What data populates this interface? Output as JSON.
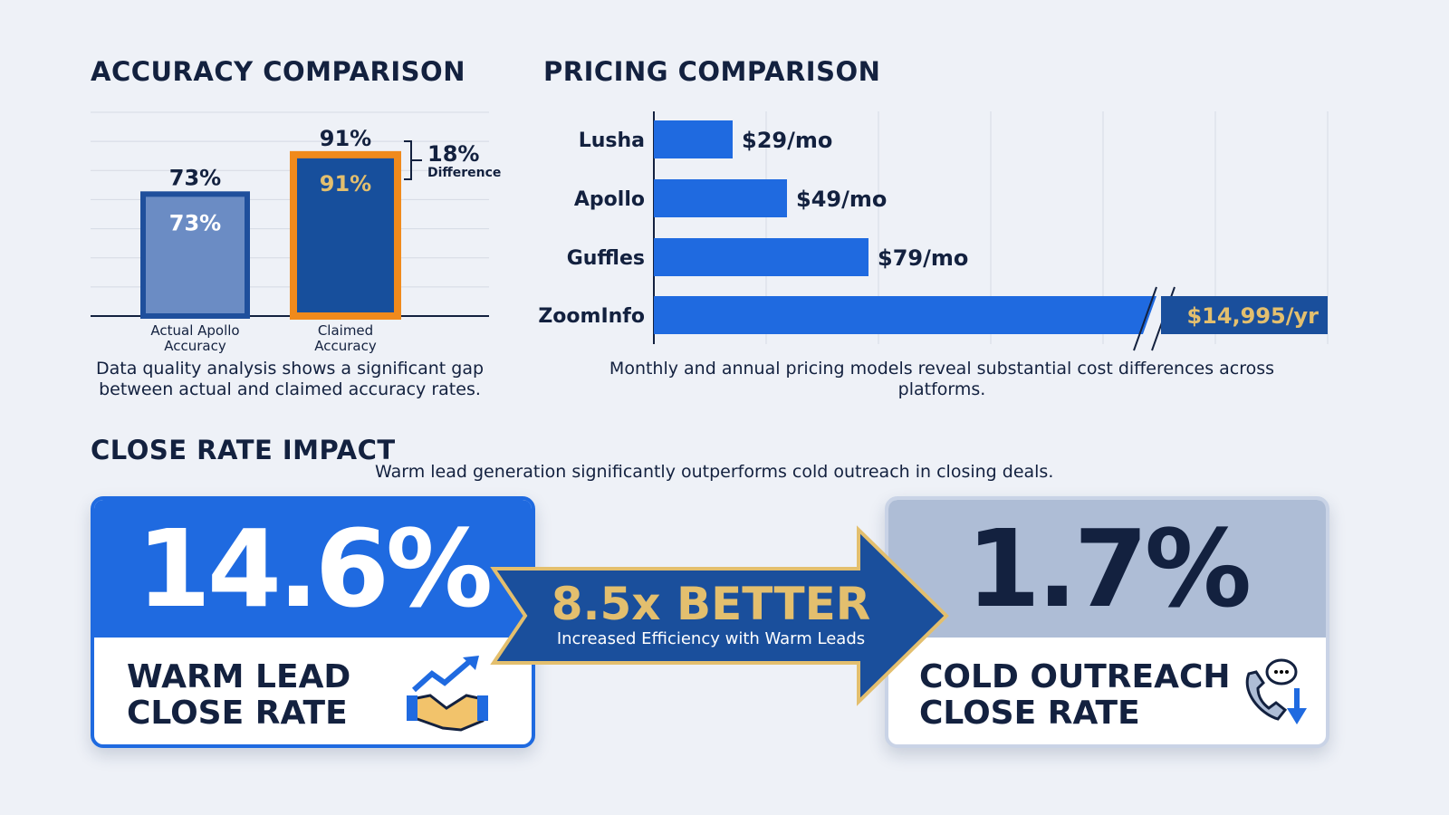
{
  "accuracy": {
    "title": "ACCURACY COMPARISON",
    "caption": "Data quality analysis shows a significant gap between actual and claimed accuracy rates.",
    "diff_value": "18%",
    "diff_label": "Difference"
  },
  "pricing": {
    "title": "PRICING COMPARISON",
    "caption": "Monthly and annual pricing models reveal substantial cost differences across platforms."
  },
  "close_rate": {
    "title": "CLOSE RATE IMPACT",
    "subtitle": "Warm lead generation significantly outperforms cold outreach in closing deals.",
    "warm": {
      "value": "14.6%",
      "label_1": "WARM LEAD",
      "label_2": "CLOSE RATE",
      "icon": "handshake-growth-icon",
      "color": "#1f6ae0"
    },
    "arrow": {
      "headline": "8.5x BETTER",
      "sub": "Increased Efficiency with Warm Leads",
      "color": "#1a4f9c",
      "accent": "#e3bf6e"
    },
    "cold": {
      "value": "1.7%",
      "label_1": "COLD OUTREACH",
      "label_2": "CLOSE RATE",
      "icon": "phone-down-icon",
      "color": "#aebdd6"
    }
  },
  "chart_data": [
    {
      "type": "bar",
      "title": "ACCURACY COMPARISON",
      "categories": [
        "Actual Apollo Accuracy",
        "Claimed Accuracy"
      ],
      "values": [
        73,
        91
      ],
      "labels": [
        "73%",
        "91%"
      ],
      "ylim": [
        0,
        100
      ],
      "grid": true,
      "colors": [
        "#6b8cc4",
        "#174f9c"
      ],
      "highlight": "#f08a1c"
    },
    {
      "type": "bar",
      "orientation": "horizontal",
      "title": "PRICING COMPARISON",
      "categories": [
        "Lusha",
        "Apollo",
        "Guffles",
        "ZoomInfo"
      ],
      "values": [
        29,
        49,
        79,
        14995
      ],
      "labels": [
        "$29/mo",
        "$49/mo",
        "$79/mo",
        "$14,995/yr"
      ],
      "axis_break": true,
      "grid": true,
      "colors": [
        "#1f6ae0",
        "#1f6ae0",
        "#1f6ae0",
        "#1f6ae0"
      ]
    }
  ]
}
